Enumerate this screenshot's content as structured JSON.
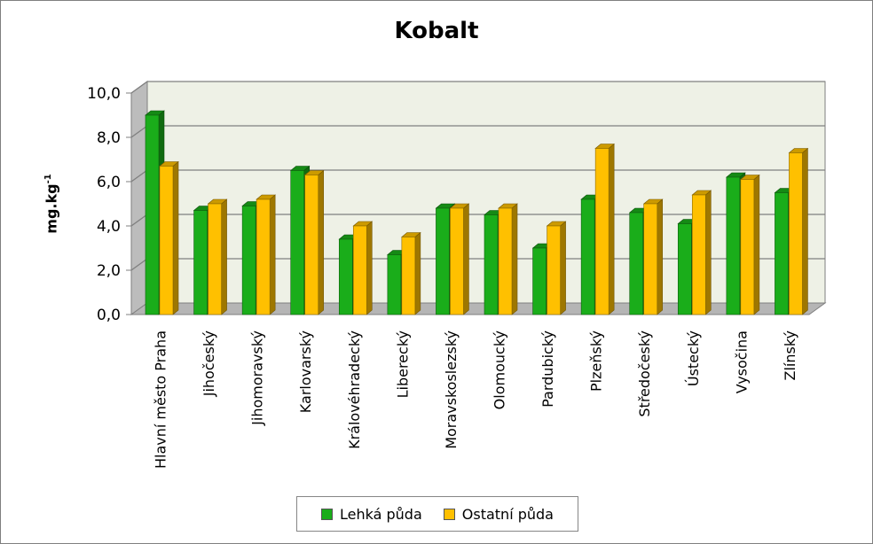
{
  "chart_data": {
    "type": "bar",
    "title": "Kobalt",
    "ylabel": "mg.kg",
    "ylabel_sup": "-1",
    "ylim": [
      0,
      10
    ],
    "yticks": [
      "0,0",
      "2,0",
      "4,0",
      "6,0",
      "8,0",
      "10,0"
    ],
    "categories": [
      "Hlavní město Praha",
      "Jihočeský",
      "Jihomoravský",
      "Karlovarský",
      "Královéhradecký",
      "Liberecký",
      "Moravskoslezský",
      "Olomoucký",
      "Pardubický",
      "Plzeňský",
      "Středočeský",
      "Ústecký",
      "Vysočina",
      "Zlínský"
    ],
    "series": [
      {
        "name": "Lehká půda",
        "color": "#1aad1a",
        "values": [
          9.0,
          4.7,
          4.9,
          6.5,
          3.4,
          2.7,
          4.8,
          4.5,
          3.0,
          5.2,
          4.6,
          4.1,
          6.2,
          5.5
        ]
      },
      {
        "name": "Ostatní půda",
        "color": "#ffc000",
        "values": [
          6.7,
          5.0,
          5.2,
          6.3,
          4.0,
          3.5,
          4.8,
          4.8,
          4.0,
          7.5,
          5.0,
          5.4,
          6.1,
          7.3
        ]
      }
    ],
    "grid": true,
    "legend_position": "bottom"
  }
}
